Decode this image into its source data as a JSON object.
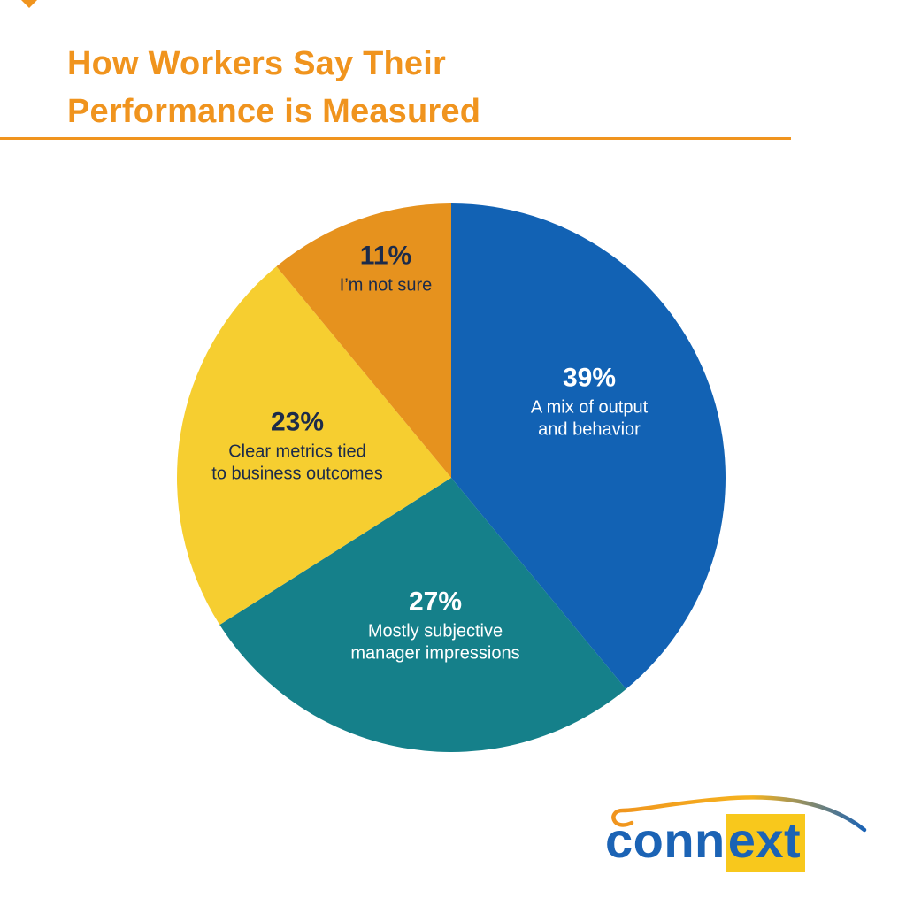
{
  "header": {
    "title": "How Workers Say Their\nPerformance is Measured"
  },
  "chart_data": {
    "type": "pie",
    "title": "How Workers Say Their Performance is Measured",
    "start_angle_deg": -90,
    "direction": "clockwise",
    "legend_position": "labels-inside-slices",
    "slices": [
      {
        "id": "mix-output-behavior",
        "label": "A mix of output and behavior",
        "value": 39,
        "pct_label": "39%",
        "lines": "A mix of output\nand behavior",
        "color": "#1262B4",
        "text_color": "#FFFFFF"
      },
      {
        "id": "subjective-manager-impressions",
        "label": "Mostly subjective manager impressions",
        "value": 27,
        "pct_label": "27%",
        "lines": "Mostly subjective\nmanager impressions",
        "color": "#15808A",
        "text_color": "#FFFFFF"
      },
      {
        "id": "clear-metrics-business-outcomes",
        "label": "Clear metrics tied to business outcomes",
        "value": 23,
        "pct_label": "23%",
        "lines": "Clear metrics tied\nto business outcomes",
        "color": "#F6CE30",
        "text_color": "#1C2B4A"
      },
      {
        "id": "not-sure",
        "label": "I’m not sure",
        "value": 11,
        "pct_label": "11%",
        "lines": "I’m not sure",
        "color": "#E6921E",
        "text_color": "#1C2B4A"
      }
    ]
  },
  "logo": {
    "part1": "conn",
    "part2": "ext",
    "blue": "#1B63B5",
    "yellow": "#F8C81C",
    "swoosh_start": "#F0941E",
    "swoosh_mid": "#F6B31E",
    "swoosh_end": "#1B63B5"
  },
  "colors": {
    "accent": "#F0941E",
    "background": "#FFFFFF"
  }
}
